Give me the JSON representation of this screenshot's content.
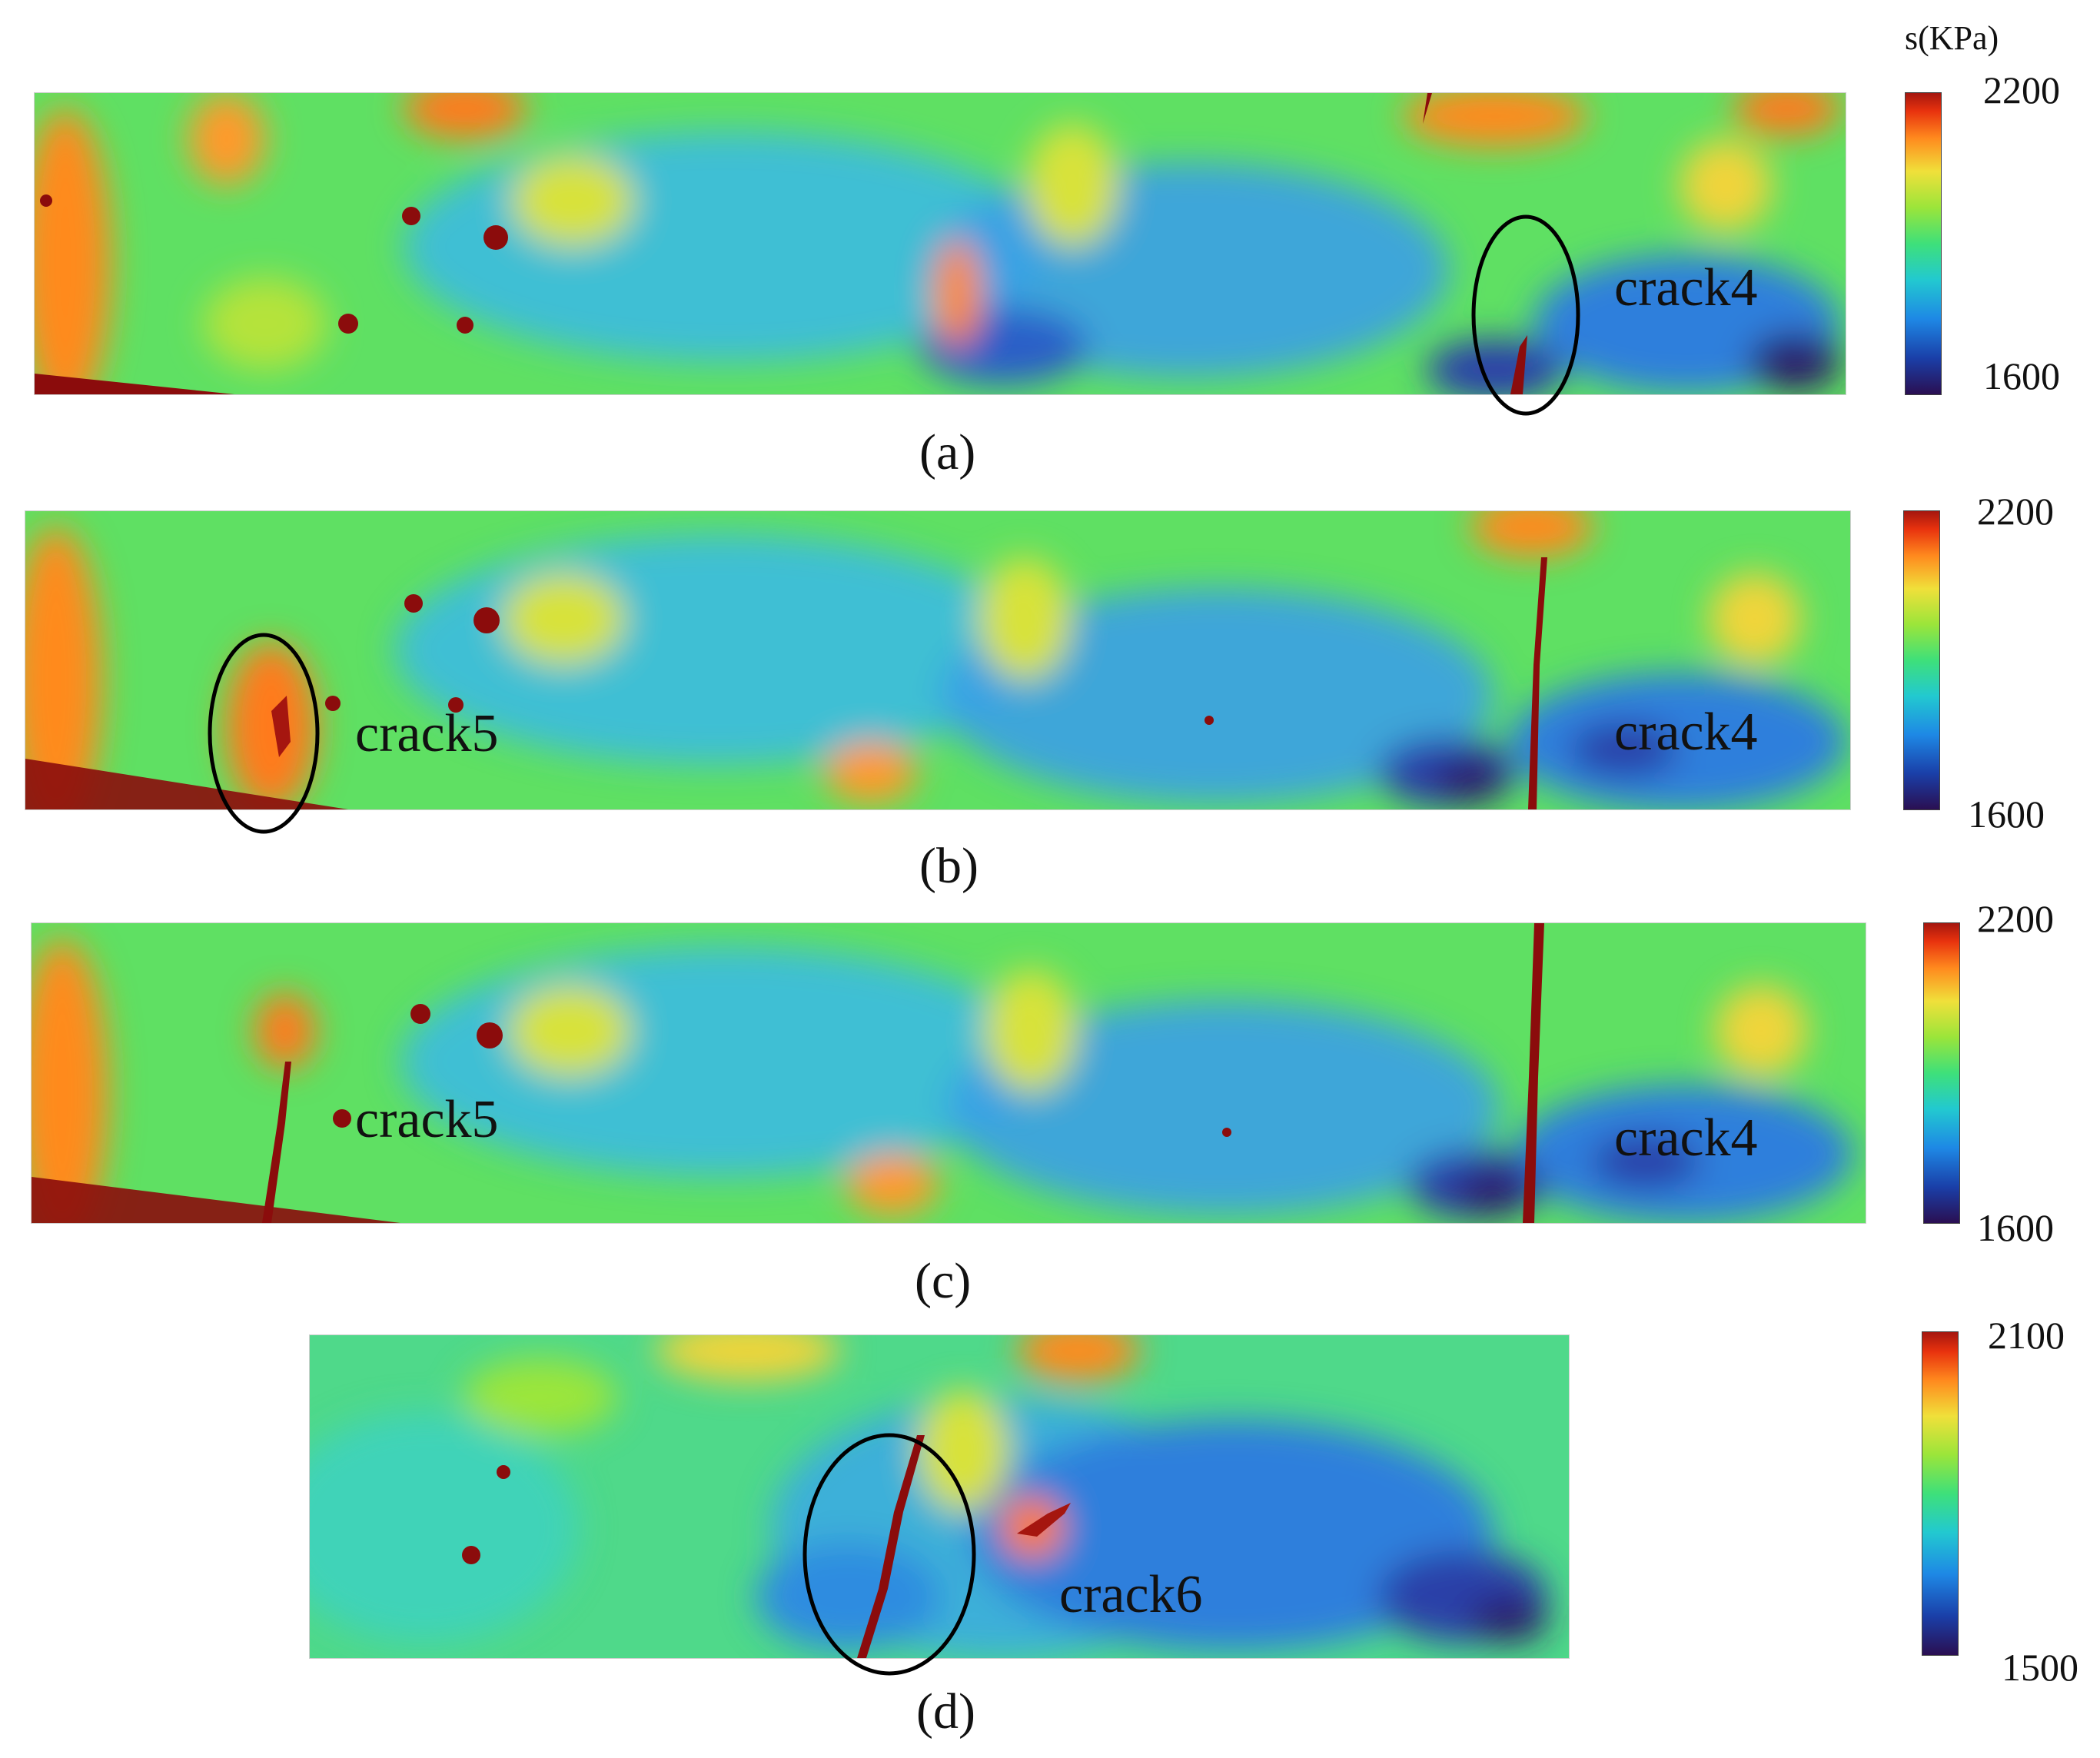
{
  "unit_label": "s(KPa)",
  "colormap": [
    "#2a0f52",
    "#1a3fa8",
    "#1e88e5",
    "#22c9d0",
    "#3ee07a",
    "#9be53a",
    "#f0e03a",
    "#ff8a1e",
    "#e8320e",
    "#a5160f"
  ],
  "crack_color": "#8b0c0c",
  "ellipse_color": "#000000",
  "panels": [
    {
      "id": "a",
      "caption": "(a)",
      "colorbar": {
        "max": "2200",
        "min": "1600"
      },
      "labels": [
        "crack4"
      ]
    },
    {
      "id": "b",
      "caption": "(b)",
      "colorbar": {
        "max": "2200",
        "min": "1600"
      },
      "labels": [
        "crack5",
        "crack4"
      ]
    },
    {
      "id": "c",
      "caption": "(c)",
      "colorbar": {
        "max": "2200",
        "min": "1600"
      },
      "labels": [
        "crack5",
        "crack4"
      ]
    },
    {
      "id": "d",
      "caption": "(d)",
      "colorbar": {
        "max": "2100",
        "min": "1500"
      },
      "labels": [
        "crack6"
      ]
    }
  ]
}
